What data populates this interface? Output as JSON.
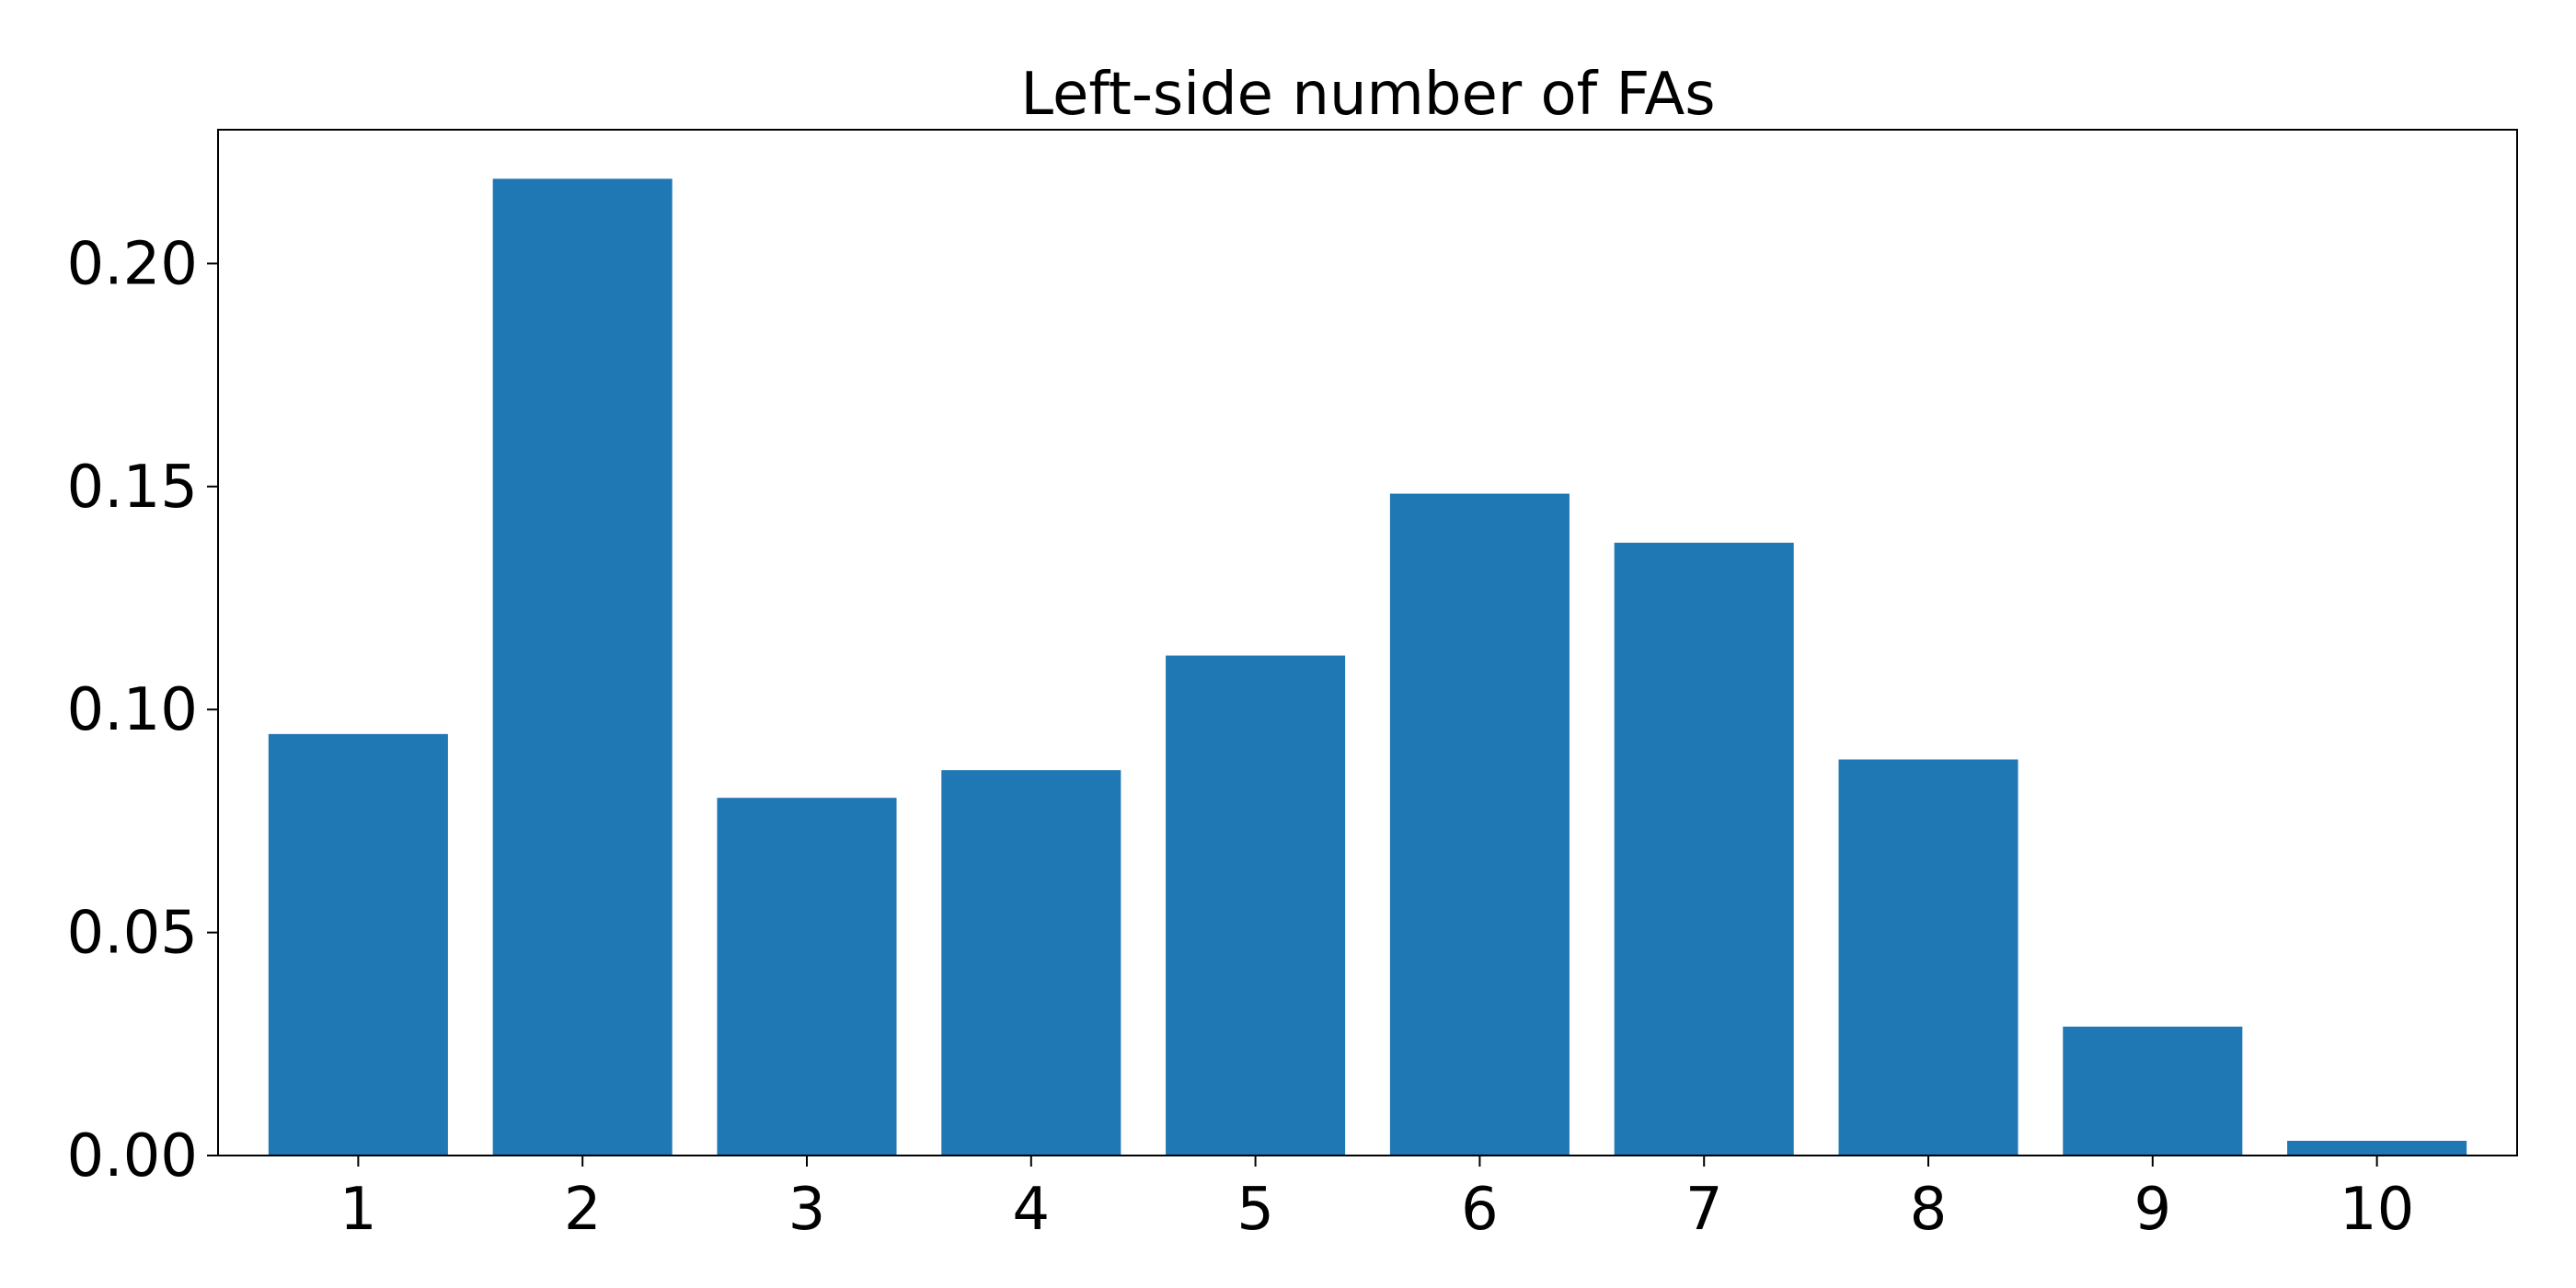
{
  "chart_data": {
    "type": "bar",
    "title": "Left-side number of FAs",
    "xlabel": "",
    "ylabel": "",
    "categories": [
      "1",
      "2",
      "3",
      "4",
      "5",
      "6",
      "7",
      "8",
      "9",
      "10"
    ],
    "values": [
      0.0945,
      0.219,
      0.0802,
      0.0864,
      0.1121,
      0.1484,
      0.1374,
      0.0888,
      0.0289,
      0.0033
    ],
    "ylim": [
      0,
      0.23
    ],
    "yticks": [
      0.0,
      0.05,
      0.1,
      0.15,
      0.2
    ],
    "ytick_labels": [
      "0.00",
      "0.05",
      "0.10",
      "0.15",
      "0.20"
    ],
    "grid": false,
    "legend": "none",
    "bar_color": "#1f77b4"
  }
}
